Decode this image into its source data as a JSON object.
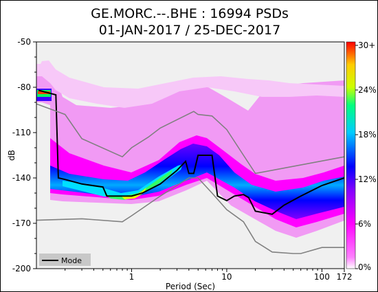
{
  "chart_data": {
    "type": "heatmap",
    "title": "GE.MORC.--.BHE : 16994 PSDs",
    "subtitle": "01-JAN-2017 / 25-DEC-2017",
    "xlabel": "Period (Sec)",
    "ylabel": "dB",
    "x_scale": "log",
    "xlim": [
      0.1,
      172
    ],
    "ylim": [
      -200,
      -50
    ],
    "xticks": [
      {
        "v": 1,
        "label": "1"
      },
      {
        "v": 10,
        "label": "10"
      },
      {
        "v": 100,
        "label": "100"
      },
      {
        "v": 172,
        "label": "172"
      }
    ],
    "yticks": [
      -50,
      -80,
      -110,
      -140,
      -170,
      -200
    ],
    "colorbar": {
      "ticks": [
        "0%",
        "6%",
        "12%",
        "18%",
        "24%",
        "30+"
      ],
      "colors": [
        "#ffffff",
        "#ff00ff",
        "#0000ff",
        "#00ffff",
        "#ffff00",
        "#ff0000"
      ]
    },
    "legend": {
      "position": "bottom-left",
      "label": "Mode"
    },
    "series": [
      {
        "name": "Mode",
        "color": "#000000",
        "x": [
          0.105,
          0.16,
          0.17,
          0.2,
          0.3,
          0.5,
          0.55,
          0.8,
          1.0,
          1.3,
          2.0,
          3.0,
          3.7,
          4.0,
          4.5,
          5.0,
          7.0,
          8.0,
          10.0,
          12.0,
          15.0,
          17.0,
          20.0,
          30.0,
          40.0,
          60.0,
          100.0,
          172.0
        ],
        "y": [
          -82,
          -85,
          -140,
          -141,
          -144,
          -146,
          -152,
          -152,
          -152,
          -150,
          -144,
          -135,
          -129,
          -137,
          -137,
          -125,
          -125,
          -152,
          -155,
          -152,
          -151,
          -153,
          -162,
          -164,
          -158,
          -152,
          -145,
          -140
        ]
      },
      {
        "name": "NHNM",
        "color": "#808080",
        "x": [
          0.1,
          0.2,
          0.3,
          0.8,
          1.0,
          1.5,
          2.0,
          4.5,
          5.0,
          7.0,
          10.0,
          15.0,
          20.0,
          172.0
        ],
        "y": [
          -91,
          -98,
          -114,
          -126,
          -120,
          -113,
          -107,
          -96,
          -98,
          -99,
          -108,
          -125,
          -137,
          -126
        ]
      },
      {
        "name": "NLNM",
        "color": "#808080",
        "x": [
          0.1,
          0.3,
          0.8,
          1.0,
          2.0,
          4.0,
          5.0,
          7.0,
          10.0,
          15.0,
          20.0,
          30.0,
          50.0,
          60.0,
          100.0,
          172.0
        ],
        "y": [
          -168,
          -167,
          -169,
          -165,
          -152,
          -140,
          -140,
          -150,
          -161,
          -169,
          -182,
          -189,
          -190,
          -190,
          -186,
          -186
        ]
      }
    ]
  }
}
